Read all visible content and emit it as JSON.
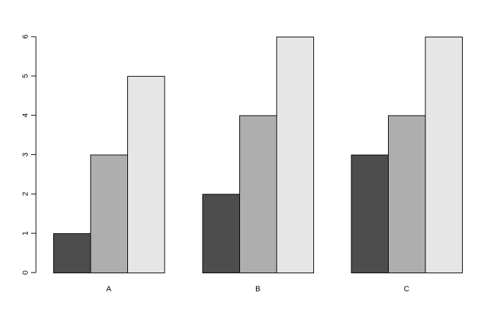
{
  "chart_data": {
    "type": "bar",
    "layout": "grouped",
    "categories": [
      "A",
      "B",
      "C"
    ],
    "series": [
      {
        "values": [
          1,
          2,
          3
        ],
        "color": "#4d4d4d"
      },
      {
        "values": [
          3,
          4,
          4
        ],
        "color": "#aeaeae"
      },
      {
        "values": [
          5,
          6,
          6
        ],
        "color": "#e6e6e6"
      }
    ],
    "y_ticks": [
      "0",
      "1",
      "2",
      "3",
      "4",
      "5",
      "6"
    ],
    "ylim": [
      0,
      6
    ],
    "grid": false,
    "legend": "none",
    "bar_border_color": "#000000"
  }
}
